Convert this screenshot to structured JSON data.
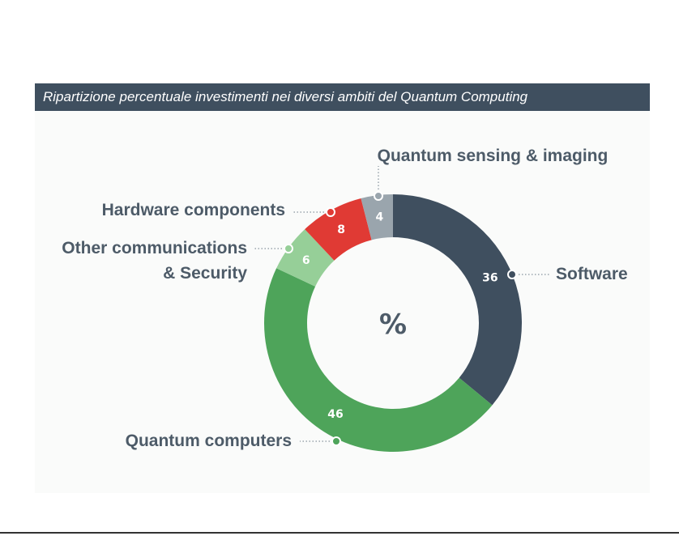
{
  "chart_data": {
    "type": "pie",
    "donut": true,
    "title": "Ripartizione percentuale investimenti nei diversi ambiti del Quantum Computing",
    "center_label": "%",
    "slices": [
      {
        "label": "Software",
        "label_lines": [
          "Software"
        ],
        "value": 36,
        "color": "#3f4f5f"
      },
      {
        "label": "Quantum computers",
        "label_lines": [
          "Quantum computers"
        ],
        "value": 46,
        "color": "#4ea45a"
      },
      {
        "label": "Other communications & Security",
        "label_lines": [
          "Other communications",
          "& Security"
        ],
        "value": 6,
        "color": "#96cf98"
      },
      {
        "label": "Hardware components",
        "label_lines": [
          "Hardware components"
        ],
        "value": 8,
        "color": "#e03a34"
      },
      {
        "label": "Quantum sensing & imaging",
        "label_lines": [
          "Quantum sensing & imaging"
        ],
        "value": 4,
        "color": "#9aa5ad"
      }
    ],
    "label_color": "#4d5b68"
  }
}
